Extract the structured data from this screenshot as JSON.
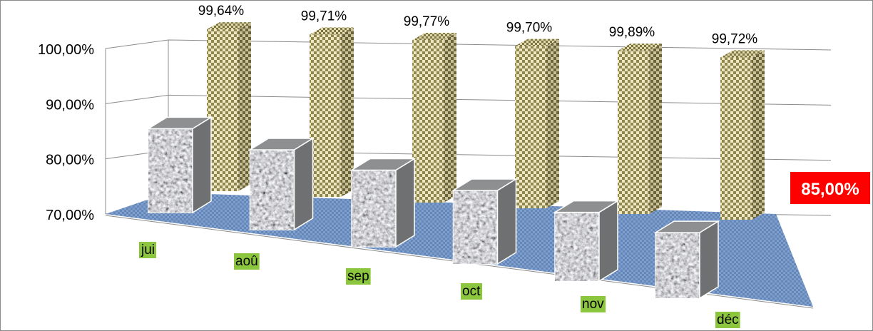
{
  "chart_data": {
    "type": "bar",
    "categories": [
      "jui",
      "aoû",
      "sep",
      "oct",
      "nov",
      "déc"
    ],
    "series": [
      {
        "values": [
          80.5,
          80.0,
          79.6,
          79.2,
          78.6,
          78.2
        ]
      },
      {
        "values": [
          99.64,
          99.71,
          99.77,
          99.7,
          99.89,
          99.72
        ]
      }
    ],
    "data_labels": [
      "99,64%",
      "99,71%",
      "99,77%",
      "99,70%",
      "99,89%",
      "99,72%"
    ],
    "y_ticks": [
      "70,00%",
      "80,00%",
      "90,00%",
      "100,00%"
    ],
    "ylim": [
      70,
      100
    ],
    "grid": true,
    "floor_label": "85,00%",
    "colors": {
      "front_series": "#b9bcc0",
      "back_series": "#cfc47c",
      "floor": "#6f8fbf",
      "category_label_bg": "#8cc63f",
      "floor_label_bg": "#ff0000"
    }
  }
}
